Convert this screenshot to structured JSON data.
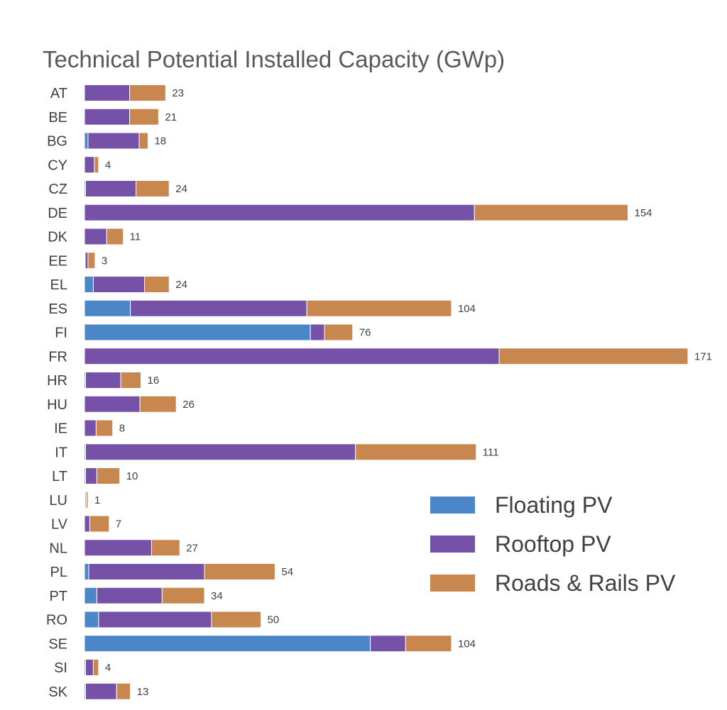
{
  "chart_data": {
    "type": "bar",
    "orientation": "horizontal",
    "stacked": true,
    "title": "Technical Potential Installed Capacity (GWp)",
    "xlabel": "",
    "ylabel": "",
    "xlim": [
      0,
      171
    ],
    "grid": false,
    "legend_position": "right",
    "categories": [
      "AT",
      "BE",
      "BG",
      "CY",
      "CZ",
      "DE",
      "DK",
      "EE",
      "EL",
      "ES",
      "FI",
      "FR",
      "HR",
      "HU",
      "IE",
      "IT",
      "LT",
      "LU",
      "LV",
      "NL",
      "PL",
      "PT",
      "RO",
      "SE",
      "SI",
      "SK"
    ],
    "series": [
      {
        "name": "Floating PV",
        "color": "#4a86c8",
        "values": [
          0,
          0,
          1,
          0,
          0.3,
          0,
          0,
          0.2,
          2.5,
          13,
          64,
          0,
          0.3,
          0,
          0,
          0.3,
          0.3,
          0.2,
          0,
          0,
          1.2,
          3.5,
          4,
          81,
          0.3,
          0.3
        ]
      },
      {
        "name": "Rooftop PV",
        "color": "#7552a8",
        "values": [
          12.8,
          12.8,
          14.5,
          2.8,
          14.3,
          110.5,
          6.3,
          0.8,
          14.5,
          50,
          4,
          117.5,
          10,
          15.7,
          3.3,
          76.5,
          3.2,
          0.3,
          1.5,
          19,
          32.8,
          18.5,
          32,
          10,
          2.2,
          8.8
        ]
      },
      {
        "name": "Roads & Rails PV",
        "color": "#c8874e",
        "values": [
          10.2,
          8.2,
          2.5,
          1.2,
          9.4,
          43.5,
          4.7,
          2,
          7,
          41,
          8,
          53.5,
          5.7,
          10.3,
          4.7,
          34.2,
          6.5,
          0.5,
          5.5,
          8,
          20,
          12,
          14,
          13,
          1.5,
          3.9
        ]
      }
    ],
    "totals": [
      23,
      21,
      18,
      4,
      24,
      154,
      11,
      3,
      24,
      104,
      76,
      171,
      16,
      26,
      8,
      111,
      10,
      1,
      7,
      27,
      54,
      34,
      50,
      104,
      4,
      13
    ]
  }
}
